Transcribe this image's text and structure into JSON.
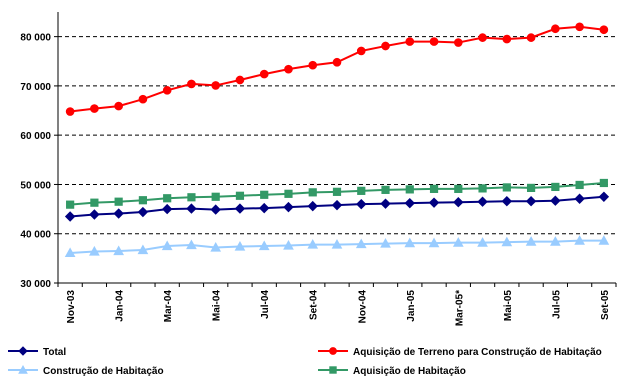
{
  "chart_data": {
    "type": "line",
    "title": "",
    "xlabel": "",
    "ylabel": "",
    "ylim": [
      30000,
      85000
    ],
    "y_ticks": [
      30000,
      40000,
      50000,
      60000,
      70000,
      80000
    ],
    "y_tick_labels": [
      "30 000",
      "40 000",
      "50 000",
      "60 000",
      "70 000",
      "80 000"
    ],
    "grid": true,
    "legend_position": "bottom",
    "x": [
      "Nov-03",
      "Dez-03",
      "Jan-04",
      "Fev-04",
      "Mar-04",
      "Abr-04",
      "Mai-04",
      "Jun-04",
      "Jul-04",
      "Ago-04",
      "Set-04",
      "Out-04",
      "Nov-04",
      "Dez-04",
      "Jan-05",
      "Fev-05",
      "Mar-05*",
      "Abr-05",
      "Mai-05",
      "Jun-05",
      "Jul-05",
      "Ago-05",
      "Set-05"
    ],
    "x_tick_labels": [
      "Nov-03",
      "",
      "Jan-04",
      "",
      "Mar-04",
      "",
      "Mai-04",
      "",
      "Jul-04",
      "",
      "Set-04",
      "",
      "Nov-04",
      "",
      "Jan-05",
      "",
      "Mar-05*",
      "",
      "Mai-05",
      "",
      "Jul-05",
      "",
      "Set-05"
    ],
    "series": [
      {
        "name": "Total",
        "color": "#000080",
        "marker": "diamond",
        "values": [
          43500,
          43900,
          44100,
          44400,
          45000,
          45100,
          44900,
          45100,
          45200,
          45400,
          45600,
          45800,
          46000,
          46100,
          46200,
          46300,
          46400,
          46500,
          46600,
          46600,
          46700,
          47100,
          47500
        ]
      },
      {
        "name": "Aquisição de Terreno para Construção de Habitação",
        "color": "#ff0000",
        "marker": "circle",
        "values": [
          64800,
          65400,
          65900,
          67300,
          69100,
          70400,
          70100,
          71200,
          72400,
          73400,
          74200,
          74800,
          77100,
          78100,
          79000,
          79000,
          78800,
          79800,
          79500,
          79800,
          81600,
          82000,
          81400
        ]
      },
      {
        "name": "Construção de Habitação",
        "color": "#99ccff",
        "marker": "triangle",
        "values": [
          36100,
          36400,
          36500,
          36700,
          37500,
          37700,
          37200,
          37400,
          37500,
          37600,
          37800,
          37800,
          37900,
          38000,
          38100,
          38100,
          38200,
          38200,
          38300,
          38400,
          38400,
          38600,
          38600
        ]
      },
      {
        "name": "Aquisição de Habitação",
        "color": "#339966",
        "marker": "square",
        "values": [
          45900,
          46300,
          46500,
          46800,
          47200,
          47400,
          47500,
          47700,
          47900,
          48100,
          48400,
          48500,
          48700,
          48900,
          49000,
          49100,
          49100,
          49200,
          49400,
          49300,
          49500,
          49900,
          50300
        ]
      }
    ]
  }
}
